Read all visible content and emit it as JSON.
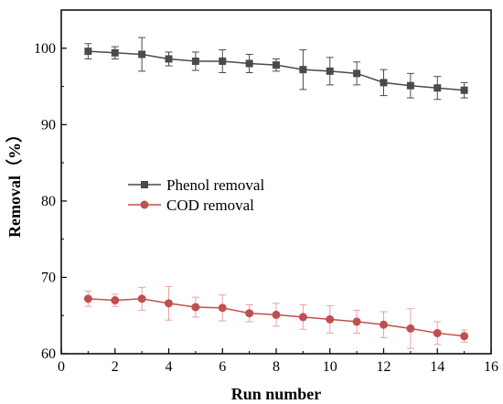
{
  "chart_data": {
    "type": "line",
    "xlabel": "Run number",
    "ylabel": "Removal（%）",
    "xlim": [
      0,
      16
    ],
    "ylim": [
      60,
      105
    ],
    "xticks": [
      "0",
      "2",
      "4",
      "6",
      "8",
      "10",
      "12",
      "14",
      "16"
    ],
    "yticks": [
      "60",
      "70",
      "80",
      "90",
      "100"
    ],
    "grid": false,
    "legend_position": "center-left",
    "x": [
      1,
      2,
      3,
      4,
      5,
      6,
      7,
      8,
      9,
      10,
      11,
      12,
      13,
      14,
      15
    ],
    "series": [
      {
        "name": "Phenol removal",
        "marker": "square",
        "color": "#4a4a4a",
        "values": [
          99.6,
          99.4,
          99.2,
          98.6,
          98.3,
          98.3,
          98.0,
          97.8,
          97.2,
          97.0,
          96.7,
          95.5,
          95.1,
          94.8,
          94.5
        ],
        "errors": [
          1.0,
          0.8,
          2.2,
          0.9,
          1.2,
          1.5,
          1.2,
          0.8,
          2.6,
          1.8,
          1.5,
          1.7,
          1.6,
          1.5,
          1.0
        ]
      },
      {
        "name": "COD removal",
        "marker": "circle",
        "color": "#c0504d",
        "errcolor": "#e8a3a3",
        "values": [
          67.2,
          67.0,
          67.2,
          66.6,
          66.1,
          66.0,
          65.3,
          65.1,
          64.8,
          64.5,
          64.2,
          63.8,
          63.3,
          62.7,
          62.3
        ],
        "errors": [
          1.0,
          0.8,
          1.5,
          2.2,
          1.3,
          1.7,
          1.1,
          1.5,
          1.6,
          1.8,
          1.5,
          1.7,
          2.6,
          1.5,
          0.8
        ]
      }
    ]
  }
}
